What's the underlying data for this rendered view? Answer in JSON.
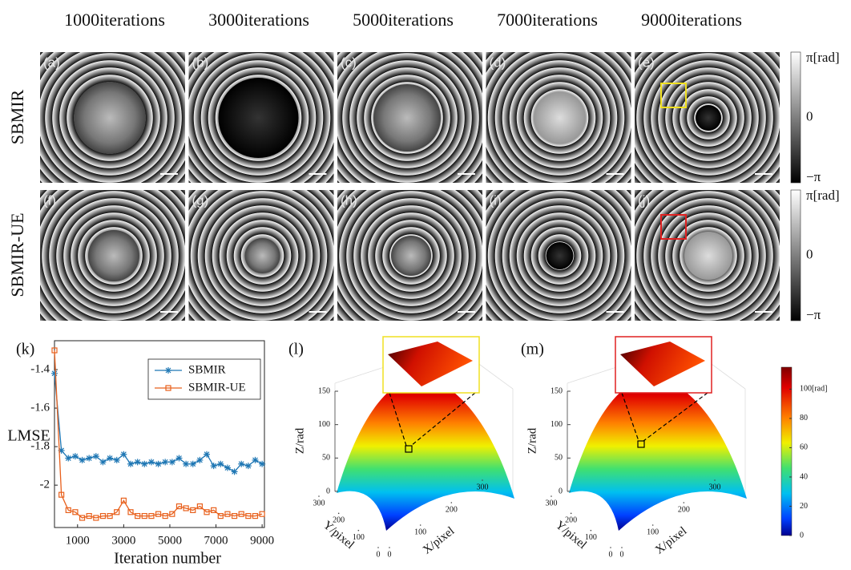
{
  "columns": [
    "1000iterations",
    "3000iterations",
    "5000iterations",
    "7000iterations",
    "9000iterations"
  ],
  "rows": [
    "SBMIR",
    "SBMIR-UE"
  ],
  "panels": [
    [
      "(a)",
      "(b)",
      "(c)",
      "(d)",
      "(e)"
    ],
    [
      "(f)",
      "(g)",
      "(h)",
      "(i)",
      "(j)"
    ]
  ],
  "phase_colorbar": {
    "lim": [
      -3.1416,
      3.1416
    ],
    "ticks": [
      {
        "value": 3.1416,
        "label": "π[rad]"
      },
      0,
      {
        "value": -3.1416,
        "label": "−π"
      }
    ]
  },
  "chart_data": [
    {
      "type": "line",
      "label": "(k)",
      "x_label": "Iteration number",
      "y_label": "LMSE",
      "x": [
        0,
        300,
        600,
        900,
        1200,
        1500,
        1800,
        2100,
        2400,
        2700,
        3000,
        3300,
        3600,
        3900,
        4200,
        4500,
        4800,
        5100,
        5400,
        5700,
        6000,
        6300,
        6600,
        6900,
        7200,
        7500,
        7800,
        8100,
        8400,
        8700,
        9000
      ],
      "series": [
        {
          "name": "SBMIR",
          "color": "#1f77b4",
          "marker": "star",
          "values": [
            -1.42,
            -1.82,
            -1.86,
            -1.85,
            -1.87,
            -1.86,
            -1.85,
            -1.88,
            -1.86,
            -1.87,
            -1.84,
            -1.89,
            -1.88,
            -1.89,
            -1.88,
            -1.89,
            -1.88,
            -1.88,
            -1.86,
            -1.89,
            -1.89,
            -1.87,
            -1.84,
            -1.9,
            -1.89,
            -1.91,
            -1.93,
            -1.89,
            -1.9,
            -1.87,
            -1.89
          ]
        },
        {
          "name": "SBMIR-UE",
          "color": "#e8601c",
          "marker": "square",
          "values": [
            -1.3,
            -2.05,
            -2.13,
            -2.14,
            -2.17,
            -2.16,
            -2.17,
            -2.16,
            -2.16,
            -2.14,
            -2.08,
            -2.14,
            -2.16,
            -2.16,
            -2.16,
            -2.15,
            -2.16,
            -2.15,
            -2.11,
            -2.12,
            -2.13,
            -2.11,
            -2.14,
            -2.13,
            -2.16,
            -2.15,
            -2.16,
            -2.15,
            -2.16,
            -2.16,
            -2.15
          ]
        }
      ],
      "xlim": [
        0,
        9100
      ],
      "xticks": [
        1000,
        3000,
        5000,
        7000,
        9000
      ],
      "ylim": [
        -2.22,
        -1.25
      ],
      "yticks": [
        -1.4,
        -1.6,
        -1.8,
        -2
      ],
      "legend": "upper-right",
      "grid": false
    },
    {
      "type": "surface",
      "label": "(l)",
      "inset_color": "#f0e020",
      "z_label": "Z/rad",
      "y_label": "Y/pixel",
      "x_label": "X/pixel",
      "zlim": [
        0,
        150
      ],
      "zticks": [
        0,
        50,
        100,
        150
      ],
      "xlim": [
        0,
        300
      ],
      "xticks": [
        0,
        100,
        200,
        300
      ],
      "ylim": [
        0,
        300
      ],
      "yticks": [
        0,
        100,
        200,
        300
      ]
    },
    {
      "type": "surface",
      "label": "(m)",
      "inset_color": "#e02020",
      "z_label": "Z/rad",
      "y_label": "Y/pixel",
      "x_label": "X/pixel",
      "zlim": [
        0,
        150
      ],
      "zticks": [
        0,
        50,
        100,
        150
      ],
      "xlim": [
        0,
        300
      ],
      "xticks": [
        0,
        100,
        200,
        300
      ],
      "ylim": [
        0,
        300
      ],
      "yticks": [
        0,
        100,
        200,
        300
      ],
      "colorbar": {
        "lim": [
          0,
          115
        ],
        "ticks": [
          0,
          20,
          40,
          60,
          80,
          {
            "value": 100,
            "label": "100[rad]"
          }
        ]
      }
    }
  ]
}
